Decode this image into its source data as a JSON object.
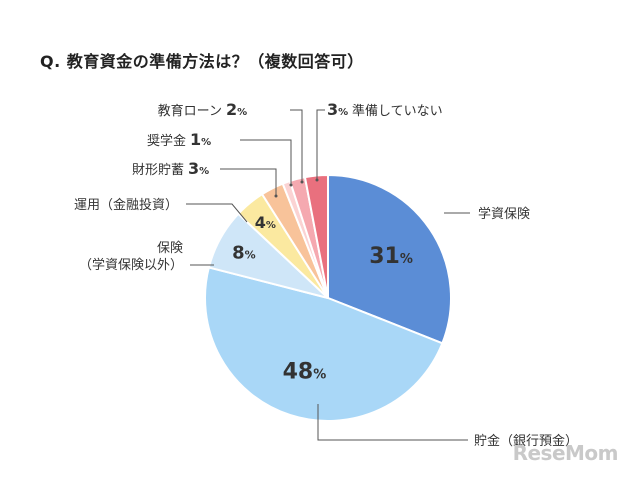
{
  "title": "Q. 教育資金の準備方法は？（複数回答可）",
  "watermark": "ReseMom",
  "chart_data": {
    "type": "pie",
    "title": "Q. 教育資金の準備方法は？（複数回答可）",
    "unit": "%",
    "start": "12 o'clock, clockwise",
    "slices": [
      {
        "label": "学資保険",
        "label_lines": [
          "学資保険"
        ],
        "value": 31,
        "color": "#5b8dd6"
      },
      {
        "label": "貯金（銀行預金）",
        "label_lines": [
          "貯金（銀行預金）"
        ],
        "value": 48,
        "color": "#a9d7f7"
      },
      {
        "label": "保険（学資保険以外）",
        "label_lines": [
          "保険",
          "（学資保険以外）"
        ],
        "value": 8,
        "color": "#cfe6f8"
      },
      {
        "label": "運用（金融投資）",
        "label_lines": [
          "運用（金融投資）"
        ],
        "value": 4,
        "color": "#fbe9a0"
      },
      {
        "label": "財形貯蓄",
        "label_lines": [
          "財形貯蓄"
        ],
        "value": 3,
        "color": "#f8c39a"
      },
      {
        "label": "奨学金",
        "label_lines": [
          "奨学金"
        ],
        "value": 1,
        "color": "#fbd3d3"
      },
      {
        "label": "教育ローン",
        "label_lines": [
          "教育ローン"
        ],
        "value": 2,
        "color": "#f5a9b0"
      },
      {
        "label": "準備していない",
        "label_lines": [
          "準備していない"
        ],
        "value": 3,
        "color": "#e9707e"
      }
    ]
  }
}
